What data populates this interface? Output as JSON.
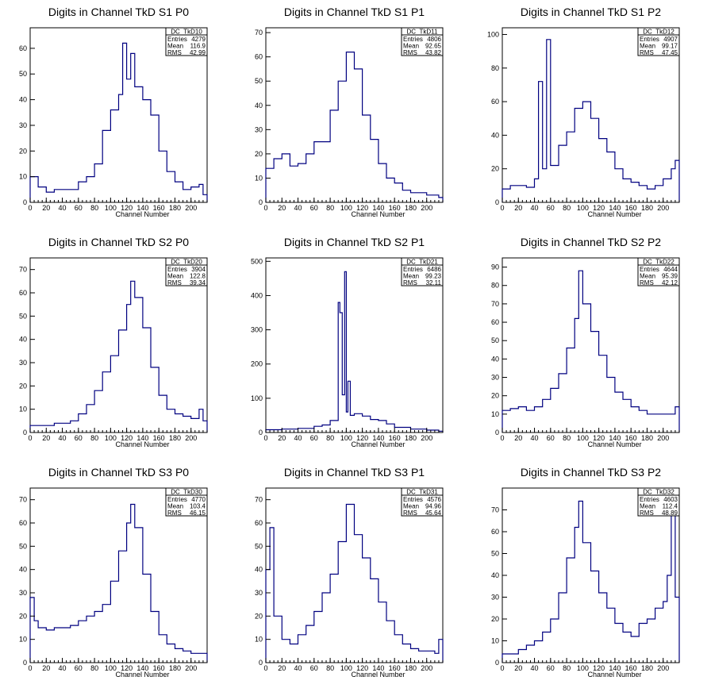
{
  "colors": {
    "histogram": "#000080",
    "frame": "#000000",
    "background": "#ffffff"
  },
  "stat_labels": {
    "entries": "Entries",
    "mean": "Mean",
    "rms": "RMS"
  },
  "chart_data": [
    {
      "type": "bar",
      "title": "Digits in Channel TkD S1 P0",
      "xlabel": "Channel Number",
      "ylabel": "",
      "stat_name": "DC_TkD10",
      "entries": "4279",
      "mean": "116.9",
      "rms": "42.99",
      "xlim": [
        0,
        220
      ],
      "ylim": [
        0,
        68
      ],
      "xticks": [
        0,
        20,
        40,
        60,
        80,
        100,
        120,
        140,
        160,
        180,
        200
      ],
      "yticks": [
        0,
        10,
        20,
        30,
        40,
        50,
        60
      ],
      "grid": false,
      "legend": "stat box top-right",
      "x": [
        0,
        10,
        20,
        30,
        40,
        50,
        60,
        70,
        80,
        90,
        100,
        110,
        115,
        120,
        125,
        130,
        140,
        150,
        160,
        170,
        180,
        190,
        200,
        210,
        215
      ],
      "values": [
        10,
        6,
        4,
        5,
        5,
        5,
        8,
        10,
        15,
        28,
        36,
        42,
        62,
        48,
        58,
        45,
        40,
        34,
        20,
        12,
        8,
        5,
        6,
        7,
        3
      ]
    },
    {
      "type": "bar",
      "title": "Digits in Channel TkD S1 P1",
      "xlabel": "Channel Number",
      "ylabel": "",
      "stat_name": "DC_TkD11",
      "entries": "4806",
      "mean": "92.65",
      "rms": "43.82",
      "xlim": [
        0,
        220
      ],
      "ylim": [
        0,
        72
      ],
      "xticks": [
        0,
        20,
        40,
        60,
        80,
        100,
        120,
        140,
        160,
        180,
        200
      ],
      "yticks": [
        0,
        10,
        20,
        30,
        40,
        50,
        60,
        70
      ],
      "grid": false,
      "legend": "stat box top-right",
      "x": [
        0,
        10,
        20,
        30,
        40,
        50,
        60,
        70,
        80,
        90,
        100,
        110,
        120,
        130,
        140,
        150,
        160,
        170,
        180,
        190,
        200,
        210,
        215
      ],
      "values": [
        14,
        18,
        20,
        15,
        16,
        20,
        25,
        25,
        38,
        50,
        62,
        55,
        36,
        26,
        16,
        10,
        8,
        5,
        4,
        4,
        3,
        3,
        2
      ]
    },
    {
      "type": "bar",
      "title": "Digits in Channel TkD S1 P2",
      "xlabel": "Channel Number",
      "ylabel": "",
      "stat_name": "DC_TkD12",
      "entries": "4907",
      "mean": "99.17",
      "rms": "47.45",
      "xlim": [
        0,
        220
      ],
      "ylim": [
        0,
        104
      ],
      "xticks": [
        0,
        20,
        40,
        60,
        80,
        100,
        120,
        140,
        160,
        180,
        200
      ],
      "yticks": [
        0,
        20,
        40,
        60,
        80,
        100
      ],
      "grid": false,
      "legend": "stat box top-right",
      "x": [
        0,
        10,
        20,
        30,
        40,
        45,
        50,
        55,
        60,
        70,
        80,
        90,
        100,
        110,
        120,
        130,
        140,
        150,
        160,
        170,
        180,
        190,
        200,
        210,
        215
      ],
      "values": [
        8,
        10,
        10,
        9,
        14,
        72,
        20,
        97,
        22,
        34,
        42,
        56,
        60,
        50,
        38,
        30,
        20,
        14,
        12,
        10,
        8,
        10,
        14,
        20,
        25
      ]
    },
    {
      "type": "bar",
      "title": "Digits in Channel TkD S2 P0",
      "xlabel": "Channel Number",
      "ylabel": "",
      "stat_name": "DC_TkD20",
      "entries": "3904",
      "mean": "122.8",
      "rms": "39.34",
      "xlim": [
        0,
        220
      ],
      "ylim": [
        0,
        75
      ],
      "xticks": [
        0,
        20,
        40,
        60,
        80,
        100,
        120,
        140,
        160,
        180,
        200
      ],
      "yticks": [
        0,
        10,
        20,
        30,
        40,
        50,
        60,
        70
      ],
      "grid": false,
      "legend": "stat box top-right",
      "x": [
        0,
        10,
        20,
        30,
        40,
        50,
        60,
        70,
        80,
        90,
        100,
        110,
        120,
        125,
        130,
        140,
        150,
        160,
        170,
        180,
        190,
        200,
        210,
        215
      ],
      "values": [
        3,
        3,
        3,
        4,
        4,
        5,
        8,
        12,
        18,
        26,
        33,
        44,
        55,
        65,
        58,
        45,
        28,
        16,
        10,
        8,
        7,
        6,
        10,
        5
      ]
    },
    {
      "type": "bar",
      "title": "Digits in Channel TkD S2 P1",
      "xlabel": "Channel Number",
      "ylabel": "",
      "stat_name": "DC_TkD21",
      "entries": "6486",
      "mean": "99.23",
      "rms": "32.11",
      "xlim": [
        0,
        220
      ],
      "ylim": [
        0,
        510
      ],
      "xticks": [
        0,
        20,
        40,
        60,
        80,
        100,
        120,
        140,
        160,
        180,
        200
      ],
      "yticks": [
        0,
        100,
        200,
        300,
        400,
        500
      ],
      "grid": false,
      "legend": "stat box top-right",
      "x": [
        0,
        20,
        40,
        60,
        70,
        80,
        90,
        92,
        95,
        98,
        100,
        102,
        105,
        110,
        120,
        130,
        140,
        150,
        160,
        180,
        200,
        215
      ],
      "values": [
        8,
        10,
        12,
        18,
        22,
        35,
        380,
        350,
        110,
        470,
        60,
        150,
        50,
        55,
        48,
        38,
        35,
        25,
        15,
        10,
        7,
        4
      ]
    },
    {
      "type": "bar",
      "title": "Digits in Channel TkD S2 P2",
      "xlabel": "Channel Number",
      "ylabel": "",
      "stat_name": "DC_TkD22",
      "entries": "4644",
      "mean": "95.39",
      "rms": "42.12",
      "xlim": [
        0,
        220
      ],
      "ylim": [
        0,
        95
      ],
      "xticks": [
        0,
        20,
        40,
        60,
        80,
        100,
        120,
        140,
        160,
        180,
        200
      ],
      "yticks": [
        0,
        10,
        20,
        30,
        40,
        50,
        60,
        70,
        80,
        90
      ],
      "grid": false,
      "legend": "stat box top-right",
      "x": [
        0,
        10,
        20,
        30,
        40,
        50,
        60,
        70,
        80,
        90,
        95,
        100,
        110,
        120,
        130,
        140,
        150,
        160,
        170,
        180,
        190,
        200,
        210,
        215
      ],
      "values": [
        12,
        13,
        14,
        12,
        14,
        18,
        24,
        32,
        46,
        62,
        88,
        70,
        55,
        42,
        30,
        22,
        18,
        14,
        12,
        10,
        10,
        10,
        10,
        14
      ]
    },
    {
      "type": "bar",
      "title": "Digits in Channel TkD S3 P0",
      "xlabel": "Channel Number",
      "ylabel": "",
      "stat_name": "DC_TkD30",
      "entries": "4770",
      "mean": "103.4",
      "rms": "46.15",
      "xlim": [
        0,
        220
      ],
      "ylim": [
        0,
        75
      ],
      "xticks": [
        0,
        20,
        40,
        60,
        80,
        100,
        120,
        140,
        160,
        180,
        200
      ],
      "yticks": [
        0,
        10,
        20,
        30,
        40,
        50,
        60,
        70
      ],
      "grid": false,
      "legend": "stat box top-right",
      "x": [
        0,
        5,
        10,
        20,
        30,
        40,
        50,
        60,
        70,
        80,
        90,
        100,
        110,
        120,
        125,
        130,
        140,
        150,
        160,
        170,
        180,
        190,
        200,
        210,
        215
      ],
      "values": [
        28,
        18,
        15,
        14,
        15,
        15,
        16,
        18,
        20,
        22,
        25,
        35,
        48,
        60,
        68,
        58,
        38,
        22,
        12,
        8,
        6,
        5,
        4,
        4,
        4
      ]
    },
    {
      "type": "bar",
      "title": "Digits in Channel TkD S3 P1",
      "xlabel": "Channel Number",
      "ylabel": "",
      "stat_name": "DC_TkD31",
      "entries": "4576",
      "mean": "94.96",
      "rms": "45.64",
      "xlim": [
        0,
        220
      ],
      "ylim": [
        0,
        75
      ],
      "xticks": [
        0,
        20,
        40,
        60,
        80,
        100,
        120,
        140,
        160,
        180,
        200
      ],
      "yticks": [
        0,
        10,
        20,
        30,
        40,
        50,
        60,
        70
      ],
      "grid": false,
      "legend": "stat box top-right",
      "x": [
        0,
        5,
        10,
        20,
        30,
        40,
        50,
        60,
        70,
        80,
        90,
        100,
        110,
        120,
        130,
        140,
        150,
        160,
        170,
        180,
        190,
        200,
        210,
        215
      ],
      "values": [
        40,
        58,
        20,
        10,
        8,
        12,
        16,
        22,
        30,
        38,
        52,
        68,
        55,
        45,
        36,
        26,
        18,
        12,
        8,
        6,
        5,
        5,
        4,
        10
      ]
    },
    {
      "type": "bar",
      "title": "Digits in Channel TkD S3 P2",
      "xlabel": "Channel Number",
      "ylabel": "",
      "stat_name": "DC_TkD32",
      "entries": "4603",
      "mean": "112.4",
      "rms": "48.89",
      "xlim": [
        0,
        220
      ],
      "ylim": [
        0,
        80
      ],
      "xticks": [
        0,
        20,
        40,
        60,
        80,
        100,
        120,
        140,
        160,
        180,
        200
      ],
      "yticks": [
        0,
        10,
        20,
        30,
        40,
        50,
        60,
        70
      ],
      "grid": false,
      "legend": "stat box top-right",
      "x": [
        0,
        10,
        20,
        30,
        40,
        50,
        60,
        70,
        80,
        90,
        95,
        100,
        110,
        120,
        130,
        140,
        150,
        160,
        170,
        180,
        190,
        200,
        205,
        210,
        215
      ],
      "values": [
        4,
        4,
        6,
        8,
        10,
        14,
        20,
        32,
        48,
        62,
        74,
        55,
        42,
        32,
        25,
        18,
        14,
        12,
        18,
        20,
        25,
        28,
        40,
        68,
        30
      ]
    }
  ]
}
